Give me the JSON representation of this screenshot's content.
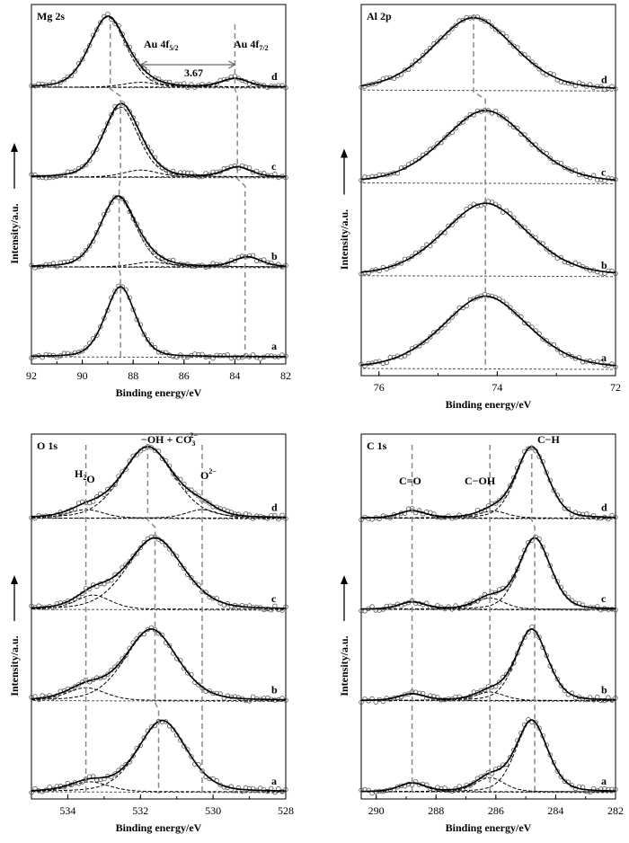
{
  "chart_data": [
    {
      "type": "line",
      "title": "Mg 2s",
      "xlabel": "Binding energy/eV",
      "ylabel": "Intensity/a.u.",
      "x_ticks": [
        "92",
        "90",
        "88",
        "86",
        "84",
        "82"
      ],
      "xlim": [
        92,
        82
      ],
      "x_reversed": true,
      "grid": false,
      "annotations": [
        {
          "text": "Au 4f",
          "sub": "5/2"
        },
        {
          "text": "Au 4f",
          "sub": "7/2"
        },
        {
          "text": "3.67"
        }
      ],
      "series": [
        {
          "label": "d",
          "peaks": [
            {
              "center": 89.0,
              "height": 1.0,
              "width": 0.75
            },
            {
              "center": 87.7,
              "height": 0.07,
              "width": 0.7
            },
            {
              "center": 84.0,
              "height": 0.12,
              "width": 0.55
            }
          ],
          "marker_line_x": [
            88.9,
            84.0
          ]
        },
        {
          "label": "c",
          "peaks": [
            {
              "center": 88.5,
              "height": 1.0,
              "width": 0.72
            },
            {
              "center": 87.7,
              "height": 0.1,
              "width": 0.7
            },
            {
              "center": 83.9,
              "height": 0.14,
              "width": 0.55
            }
          ],
          "marker_line_x": [
            88.5,
            83.9
          ]
        },
        {
          "label": "b",
          "peaks": [
            {
              "center": 88.6,
              "height": 1.0,
              "width": 0.72
            },
            {
              "center": 87.3,
              "height": 0.07,
              "width": 0.7
            },
            {
              "center": 83.5,
              "height": 0.14,
              "width": 0.55
            }
          ],
          "marker_line_x": [
            88.55,
            83.6
          ]
        },
        {
          "label": "a",
          "peaks": [
            {
              "center": 88.5,
              "height": 1.0,
              "width": 0.62
            }
          ],
          "marker_line_x": [
            88.5,
            83.6
          ]
        }
      ]
    },
    {
      "type": "line",
      "title": "Al 2p",
      "xlabel": "Binding energy/eV",
      "ylabel": "Intensity/a.u.",
      "x_ticks": [
        "76",
        "74",
        "72"
      ],
      "xlim": [
        76.3,
        72
      ],
      "x_reversed": true,
      "grid": false,
      "series": [
        {
          "label": "d",
          "peaks": [
            {
              "center": 74.4,
              "height": 1.0,
              "width": 0.72
            }
          ],
          "marker_line_x": [
            74.4
          ]
        },
        {
          "label": "c",
          "peaks": [
            {
              "center": 74.2,
              "height": 1.0,
              "width": 0.75
            }
          ],
          "marker_line_x": [
            74.2
          ]
        },
        {
          "label": "b",
          "peaks": [
            {
              "center": 74.2,
              "height": 1.0,
              "width": 0.75
            }
          ],
          "marker_line_x": [
            74.2
          ]
        },
        {
          "label": "a",
          "peaks": [
            {
              "center": 74.2,
              "height": 1.0,
              "width": 0.75
            }
          ],
          "marker_line_x": [
            74.2
          ]
        }
      ]
    },
    {
      "type": "line",
      "title": "O 1s",
      "xlabel": "Binding energy/eV",
      "ylabel": "Intensity/a.u.",
      "x_ticks": [
        "534",
        "532",
        "530",
        "528"
      ],
      "xlim": [
        535,
        528
      ],
      "x_reversed": true,
      "grid": false,
      "annotations": [
        {
          "text": "H",
          "sub": "2",
          "after": "O"
        },
        {
          "text": "−OH + CO",
          "sub": "3",
          "sup": "2−"
        },
        {
          "text": "O",
          "sup": "2−"
        }
      ],
      "series": [
        {
          "label": "d",
          "peaks": [
            {
              "center": 531.8,
              "height": 1.0,
              "width": 0.75
            },
            {
              "center": 533.5,
              "height": 0.12,
              "width": 0.5
            },
            {
              "center": 530.3,
              "height": 0.12,
              "width": 0.45
            }
          ],
          "marker_line_x": [
            533.5,
            531.8,
            530.3
          ]
        },
        {
          "label": "c",
          "peaks": [
            {
              "center": 531.6,
              "height": 1.0,
              "width": 0.8
            },
            {
              "center": 533.3,
              "height": 0.2,
              "width": 0.5
            }
          ],
          "marker_line_x": [
            533.5,
            531.6,
            530.3
          ]
        },
        {
          "label": "b",
          "peaks": [
            {
              "center": 531.7,
              "height": 1.0,
              "width": 0.75
            },
            {
              "center": 533.5,
              "height": 0.18,
              "width": 0.55
            }
          ],
          "marker_line_x": [
            533.5,
            531.6,
            530.3
          ]
        },
        {
          "label": "a",
          "peaks": [
            {
              "center": 531.4,
              "height": 1.0,
              "width": 0.7
            },
            {
              "center": 533.4,
              "height": 0.14,
              "width": 0.55
            }
          ],
          "marker_line_x": [
            533.5,
            531.5,
            530.3
          ]
        }
      ]
    },
    {
      "type": "line",
      "title": "C 1s",
      "xlabel": "Binding energy/eV",
      "ylabel": "Intensity/a.u.",
      "x_ticks": [
        "290",
        "288",
        "286",
        "284",
        "282"
      ],
      "xlim": [
        290.5,
        282
      ],
      "x_reversed": true,
      "grid": false,
      "annotations": [
        {
          "text": "C=O"
        },
        {
          "text": "C−OH"
        },
        {
          "text": "C−H"
        }
      ],
      "series": [
        {
          "label": "d",
          "peaks": [
            {
              "center": 284.8,
              "height": 1.0,
              "width": 0.55
            },
            {
              "center": 286.1,
              "height": 0.1,
              "width": 0.5
            },
            {
              "center": 288.8,
              "height": 0.1,
              "width": 0.45
            }
          ],
          "marker_line_x": [
            288.8,
            286.2,
            284.8
          ]
        },
        {
          "label": "c",
          "peaks": [
            {
              "center": 284.7,
              "height": 1.0,
              "width": 0.55
            },
            {
              "center": 286.2,
              "height": 0.16,
              "width": 0.5
            },
            {
              "center": 288.8,
              "height": 0.1,
              "width": 0.45
            }
          ],
          "marker_line_x": [
            288.8,
            286.2,
            284.7
          ]
        },
        {
          "label": "b",
          "peaks": [
            {
              "center": 284.8,
              "height": 1.0,
              "width": 0.55
            },
            {
              "center": 286.2,
              "height": 0.12,
              "width": 0.5
            },
            {
              "center": 288.8,
              "height": 0.09,
              "width": 0.45
            }
          ],
          "marker_line_x": [
            288.8,
            286.2,
            284.7
          ]
        },
        {
          "label": "a",
          "peaks": [
            {
              "center": 284.8,
              "height": 1.0,
              "width": 0.55
            },
            {
              "center": 286.2,
              "height": 0.2,
              "width": 0.5
            },
            {
              "center": 288.8,
              "height": 0.12,
              "width": 0.45
            }
          ],
          "marker_line_x": [
            288.8,
            286.2,
            284.7
          ]
        }
      ]
    }
  ]
}
